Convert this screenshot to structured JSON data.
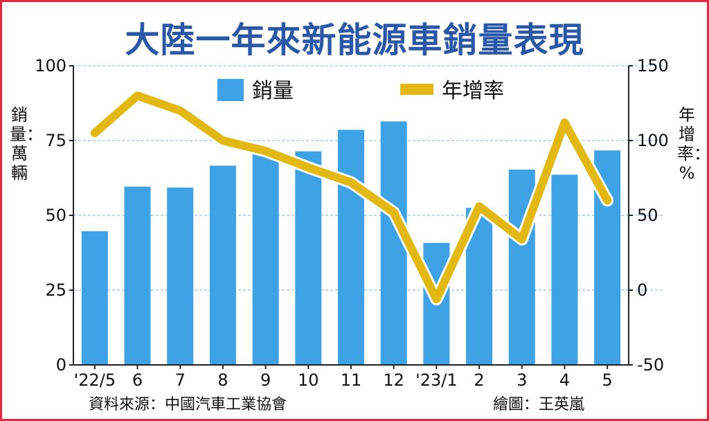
{
  "title": "大陸一年來新能源車銷量表現",
  "source": "資料來源：中國汽車工業協會",
  "credit": "繪圖：王英嵐",
  "chart_data": {
    "type": "bar",
    "title": "大陸一年來新能源車銷量表現",
    "categories": [
      "'22/5",
      "6",
      "7",
      "8",
      "9",
      "10",
      "11",
      "12",
      "'23/1",
      "2",
      "3",
      "4",
      "5"
    ],
    "series": [
      {
        "name": "銷量",
        "type": "bar",
        "axis": "left",
        "color": "#3da2e6",
        "values": [
          44.7,
          59.6,
          59.3,
          66.6,
          70.8,
          71.4,
          78.6,
          81.4,
          40.8,
          52.5,
          65.3,
          63.6,
          71.7
        ]
      },
      {
        "name": "年增率",
        "type": "line",
        "axis": "right",
        "color": "#e2b811",
        "values": [
          105,
          130,
          120,
          100,
          93,
          82,
          72,
          52,
          -6,
          56,
          34,
          112,
          60
        ]
      }
    ],
    "ylabel": "銷量：萬輛",
    "y2label": "年增率：%",
    "ylim": [
      0,
      100
    ],
    "y2lim": [
      -50,
      150
    ],
    "yticks": [
      0,
      25,
      50,
      75,
      100
    ],
    "y2ticks": [
      -50,
      0,
      50,
      100,
      150
    ],
    "grid": true,
    "legend": "top-center"
  }
}
